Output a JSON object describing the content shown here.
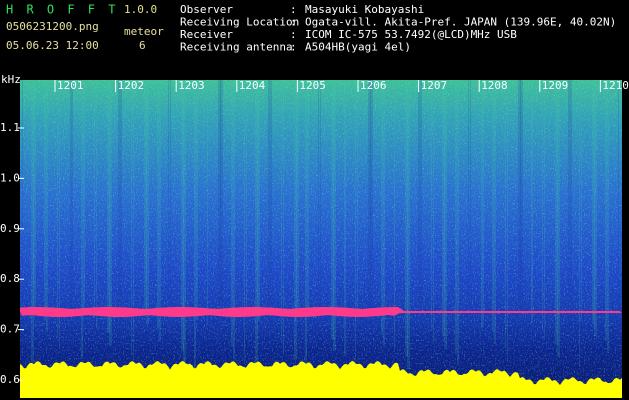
{
  "header": {
    "app": "H R O F F T",
    "version": "1.0.0",
    "filename": "0506231200.png",
    "datetime": "05.06.23 12:00",
    "meteor_label": "meteor",
    "meteor_count": "6"
  },
  "info": [
    {
      "label": "Observer",
      "separator": ":",
      "value": "Masayuki Kobayashi"
    },
    {
      "label": "Receiving Location",
      "separator": ":",
      "value": "Ogata-vill. Akita-Pref. JAPAN (139.96E, 40.02N)"
    },
    {
      "label": "Receiver",
      "separator": ":",
      "value": "ICOM IC-575 53.7492(@LCD)MHz USB"
    },
    {
      "label": "Receiving antenna",
      "separator": ":",
      "value": "A504HB(yagi 4el)"
    }
  ],
  "spectrogram": {
    "time_labels": [
      "1201",
      "1202",
      "1203",
      "1204",
      "1205",
      "1206",
      "1207",
      "1208",
      "1209",
      "1210"
    ],
    "freq_unit": "kHz",
    "freq_labels": [
      "1.1",
      "1.0",
      "0.9",
      "0.8",
      "0.7",
      "0.6"
    ]
  }
}
